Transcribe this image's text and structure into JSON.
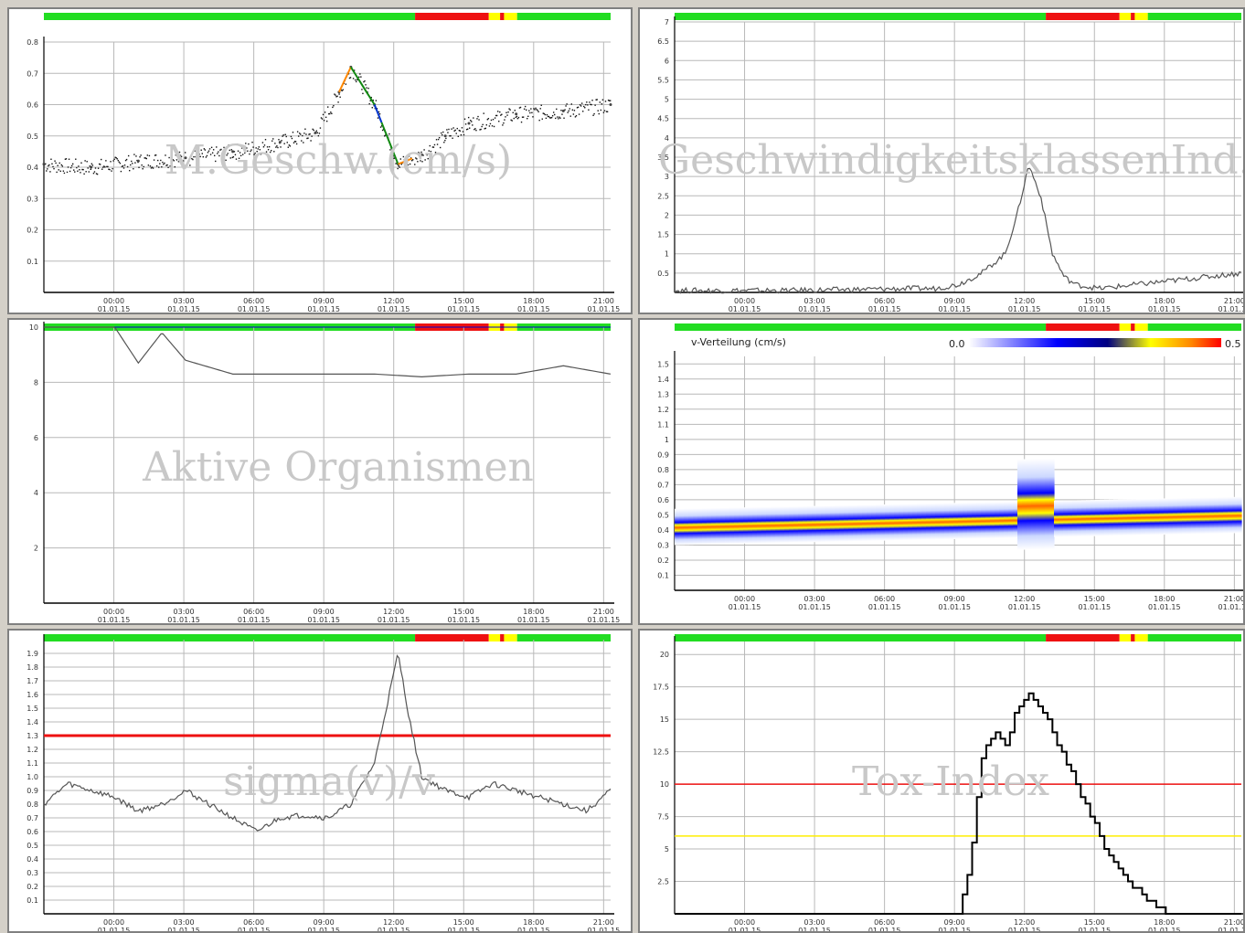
{
  "status_colors": {
    "ok": "#22dd22",
    "alarm": "#ee1111",
    "warn": "#ffff00"
  },
  "panels": [
    {
      "id": "p1",
      "watermark": "M.Geschw.(cm/s)",
      "ticks": [
        {
          "y": 0.8,
          "label": "0.8"
        },
        {
          "y": 0.7,
          "label": "0.7"
        },
        {
          "y": 0.6,
          "label": "0.6"
        },
        {
          "y": 0.5,
          "label": "0.5"
        },
        {
          "y": 0.4,
          "label": "0.4"
        },
        {
          "y": 0.3,
          "label": "0.3"
        },
        {
          "y": 0.2,
          "label": "0.2"
        },
        {
          "y": 0.1,
          "label": "0.1"
        }
      ],
      "ylim": [
        0,
        0.8
      ],
      "xlabels": [
        "00:00\n01.01.15",
        "03:00\n01.01.15",
        "06:00\n01.01.15",
        "09:00\n01.01.15",
        "12:00\n01.01.15",
        "15:00\n01.01.15",
        "18:00\n01.01.15",
        "21:00\n01.01.15"
      ]
    },
    {
      "id": "p2",
      "watermark": "GeschwindigkeitsklassenInd.",
      "ticks": [
        {
          "y": 7,
          "label": "7"
        },
        {
          "y": 6.5,
          "label": "6.5"
        },
        {
          "y": 6,
          "label": "6"
        },
        {
          "y": 5.5,
          "label": "5.5"
        },
        {
          "y": 5,
          "label": "5"
        },
        {
          "y": 4.5,
          "label": "4.5"
        },
        {
          "y": 4,
          "label": "4"
        },
        {
          "y": 3.5,
          "label": "3.5"
        },
        {
          "y": 3,
          "label": "3"
        },
        {
          "y": 2.5,
          "label": "2.5"
        },
        {
          "y": 2,
          "label": "2"
        },
        {
          "y": 1.5,
          "label": "1.5"
        },
        {
          "y": 1,
          "label": "1"
        },
        {
          "y": 0.5,
          "label": "0.5"
        }
      ],
      "ylim": [
        0,
        7
      ],
      "xlabels": [
        "00:00\n01.01.15",
        "03:00\n01.01.15",
        "06:00\n01.01.15",
        "09:00\n01.01.15",
        "12:00\n01.01.15",
        "15:00\n01.01.15",
        "18:00\n01.01.15",
        "21:00\n01.01.15"
      ]
    },
    {
      "id": "p3",
      "watermark": "Aktive Organismen",
      "ticks": [
        {
          "y": 10,
          "label": "10"
        },
        {
          "y": 8,
          "label": "8"
        },
        {
          "y": 6,
          "label": "6"
        },
        {
          "y": 4,
          "label": "4"
        },
        {
          "y": 2,
          "label": "2"
        }
      ],
      "ylim": [
        0,
        10
      ],
      "xlabels": [
        "00:00\n01.01.15",
        "03:00\n01.01.15",
        "06:00\n01.01.15",
        "09:00\n01.01.15",
        "12:00\n01.01.15",
        "15:00\n01.01.15",
        "18:00\n01.01.15",
        "21:00\n01.01.15"
      ]
    },
    {
      "id": "p4",
      "watermark": "",
      "legend": {
        "title": "v-Verteilung (cm/s)",
        "min": "0.0",
        "max": "0.5"
      },
      "ticks": [
        {
          "y": 1.5,
          "label": "1.5"
        },
        {
          "y": 1.4,
          "label": "1.4"
        },
        {
          "y": 1.3,
          "label": "1.3"
        },
        {
          "y": 1.2,
          "label": "1.2"
        },
        {
          "y": 1.1,
          "label": "1.1"
        },
        {
          "y": 1.0,
          "label": "1"
        },
        {
          "y": 0.9,
          "label": "0.9"
        },
        {
          "y": 0.8,
          "label": "0.8"
        },
        {
          "y": 0.7,
          "label": "0.7"
        },
        {
          "y": 0.6,
          "label": "0.6"
        },
        {
          "y": 0.5,
          "label": "0.5"
        },
        {
          "y": 0.4,
          "label": "0.4"
        },
        {
          "y": 0.3,
          "label": "0.3"
        },
        {
          "y": 0.2,
          "label": "0.2"
        },
        {
          "y": 0.1,
          "label": "0.1"
        }
      ],
      "ylim": [
        0,
        1.55
      ],
      "xlabels": [
        "00:00\n01.01.15",
        "03:00\n01.01.15",
        "06:00\n01.01.15",
        "09:00\n01.01.15",
        "12:00\n01.01.15",
        "15:00\n01.01.15",
        "18:00\n01.01.15",
        "21:00\n01.01.15"
      ]
    },
    {
      "id": "p5",
      "watermark": "sigma(v)/v",
      "ticks": [
        {
          "y": 1.9,
          "label": "1.9"
        },
        {
          "y": 1.8,
          "label": "1.8"
        },
        {
          "y": 1.7,
          "label": "1.7"
        },
        {
          "y": 1.6,
          "label": "1.6"
        },
        {
          "y": 1.5,
          "label": "1.5"
        },
        {
          "y": 1.4,
          "label": "1.4"
        },
        {
          "y": 1.3,
          "label": "1.3"
        },
        {
          "y": 1.2,
          "label": "1.2"
        },
        {
          "y": 1.1,
          "label": "1.1"
        },
        {
          "y": 1.0,
          "label": "1.0"
        },
        {
          "y": 0.9,
          "label": "0.9"
        },
        {
          "y": 0.8,
          "label": "0.8"
        },
        {
          "y": 0.7,
          "label": "0.7"
        },
        {
          "y": 0.6,
          "label": "0.6"
        },
        {
          "y": 0.5,
          "label": "0.5"
        },
        {
          "y": 0.4,
          "label": "0.4"
        },
        {
          "y": 0.3,
          "label": "0.3"
        },
        {
          "y": 0.2,
          "label": "0.2"
        },
        {
          "y": 0.1,
          "label": "0.1"
        }
      ],
      "ylim": [
        0,
        2.0
      ],
      "threshold": 1.3,
      "xlabels": [
        "00:00\n01.01.15",
        "03:00\n01.01.15",
        "06:00\n01.01.15",
        "09:00\n01.01.15",
        "12:00\n01.01.15",
        "15:00\n01.01.15",
        "18:00\n01.01.15",
        "21:00\n01.01.15"
      ]
    },
    {
      "id": "p6",
      "watermark": "Tox-Index",
      "ticks": [
        {
          "y": 20,
          "label": "20"
        },
        {
          "y": 17.5,
          "label": "17.5"
        },
        {
          "y": 15,
          "label": "15"
        },
        {
          "y": 12.5,
          "label": "12.5"
        },
        {
          "y": 10,
          "label": "10"
        },
        {
          "y": 7.5,
          "label": "7.5"
        },
        {
          "y": 5,
          "label": "5"
        },
        {
          "y": 2.5,
          "label": "2.5"
        }
      ],
      "ylim": [
        0,
        21
      ],
      "thresholds": [
        {
          "y": 10,
          "color": "#ee1111"
        },
        {
          "y": 6,
          "color": "#ffee00"
        }
      ],
      "xlabels": [
        "00:00\n01.01.15",
        "03:00\n01.01.15",
        "06:00\n01.01.15",
        "09:00\n01.01.15",
        "12:00\n01.01.15",
        "15:00\n01.01.15",
        "18:00\n01.01.15",
        "21:00\n01.01.15"
      ]
    }
  ],
  "chart_data": [
    {
      "type": "scatter",
      "title": "M.Geschw.(cm/s)",
      "ylim": [
        0,
        0.8
      ],
      "x": [
        0,
        2,
        4,
        6,
        8,
        10,
        11.5,
        12.5,
        13,
        14,
        15,
        16,
        17,
        18,
        20,
        22,
        24
      ],
      "values": [
        0.41,
        0.4,
        0.42,
        0.43,
        0.45,
        0.48,
        0.51,
        0.64,
        0.72,
        0.6,
        0.41,
        0.44,
        0.5,
        0.54,
        0.57,
        0.58,
        0.6
      ]
    },
    {
      "type": "line",
      "title": "GeschwindigkeitsklassenInd.",
      "ylim": [
        0,
        7
      ],
      "x": [
        0,
        5,
        10,
        11,
        12,
        13,
        14,
        14.5,
        15,
        15.5,
        16,
        16.5,
        17,
        18,
        24
      ],
      "values": [
        0.05,
        0.05,
        0.1,
        0.1,
        0.2,
        0.5,
        1.0,
        2.0,
        3.3,
        2.5,
        1.0,
        0.4,
        0.2,
        0.1,
        0.5
      ]
    },
    {
      "type": "line",
      "title": "Aktive Organismen",
      "ylim": [
        0,
        10
      ],
      "x": [
        0,
        3,
        4,
        5,
        6,
        8,
        10,
        12,
        14,
        16,
        18,
        20,
        22,
        24
      ],
      "values": [
        10,
        10,
        8.7,
        9.8,
        8.8,
        8.3,
        8.3,
        8.3,
        8.3,
        8.2,
        8.3,
        8.3,
        8.6,
        8.3
      ]
    },
    {
      "type": "heatmap",
      "title": "v-Verteilung (cm/s)",
      "ylim": [
        0,
        1.55
      ]
    },
    {
      "type": "line",
      "title": "sigma(v)/v",
      "ylim": [
        0,
        2.0
      ],
      "x": [
        0,
        1,
        2,
        3,
        4,
        5,
        6,
        7,
        8,
        9,
        10,
        11,
        12,
        13,
        14,
        14.5,
        15,
        15.5,
        16,
        17,
        18,
        19,
        20,
        21,
        22,
        23,
        24
      ],
      "values": [
        0.8,
        0.95,
        0.9,
        0.85,
        0.75,
        0.8,
        0.9,
        0.8,
        0.7,
        0.6,
        0.7,
        0.72,
        0.7,
        0.8,
        1.1,
        1.5,
        1.9,
        1.4,
        1.0,
        0.9,
        0.85,
        0.95,
        0.9,
        0.85,
        0.8,
        0.75,
        0.9
      ]
    },
    {
      "type": "line",
      "title": "Tox-Index",
      "ylim": [
        0,
        21
      ],
      "x": [
        0,
        11,
        12,
        12.5,
        13,
        13.5,
        14,
        14.5,
        15,
        15.5,
        16,
        16.5,
        17,
        17.5,
        18,
        18.5,
        19,
        19.5,
        20,
        20.5,
        21,
        22,
        23,
        24
      ],
      "values": [
        0,
        0,
        0,
        4,
        12,
        14,
        13,
        16,
        17,
        16,
        14,
        12,
        10,
        8,
        6,
        4,
        3,
        2,
        1,
        0.5,
        0,
        0,
        0,
        0
      ]
    }
  ]
}
